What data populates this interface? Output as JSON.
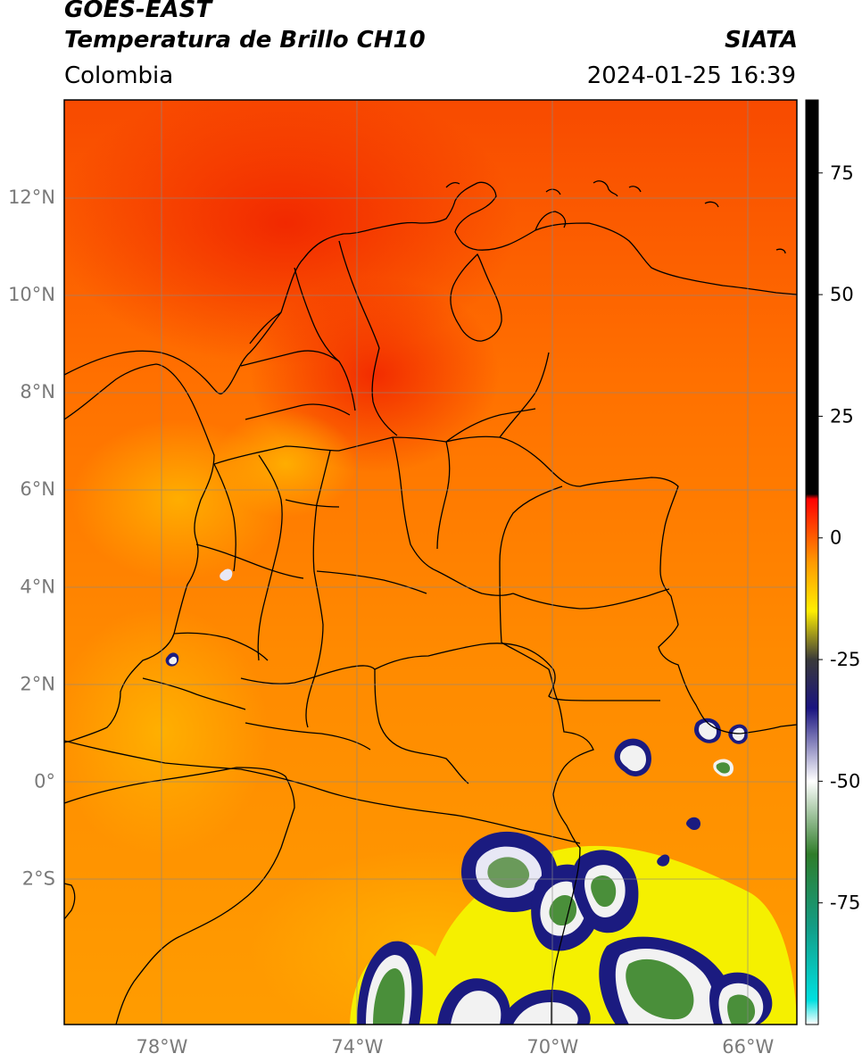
{
  "header": {
    "satellite": "GOES-EAST",
    "product": "Temperatura de Brillo CH10",
    "region": "Colombia",
    "organization": "SIATA",
    "timestamp": "2024-01-25 16:39"
  },
  "map": {
    "lon_range": [
      -80,
      -65
    ],
    "lat_range": [
      -5,
      14
    ],
    "lat_ticks": [
      "12°N",
      "10°N",
      "8°N",
      "6°N",
      "4°N",
      "2°N",
      "0°",
      "2°S"
    ],
    "lon_ticks": [
      "78°W",
      "74°W",
      "70°W",
      "66°W"
    ],
    "background_colors": {
      "warm": "#ff7a00",
      "hot": "#f23a00",
      "mild": "#ff9a00"
    },
    "cloud_colors": {
      "cold_core": "#4a8f3a",
      "white": "#f2f2f2",
      "navy": "#1b1b80",
      "yellow": "#f5f000"
    }
  },
  "colorbar": {
    "range": [
      -100,
      90
    ],
    "tick_labels": [
      "75",
      "50",
      "25",
      "0",
      "-25",
      "-50",
      "-75"
    ],
    "stops": [
      {
        "value": -100,
        "color": "#ffffff"
      },
      {
        "value": -95,
        "color": "#00e0e0"
      },
      {
        "value": -80,
        "color": "#139d86"
      },
      {
        "value": -65,
        "color": "#2f7d2a"
      },
      {
        "value": -50,
        "color": "#ffffff"
      },
      {
        "value": -35,
        "color": "#1a1480"
      },
      {
        "value": -25,
        "color": "#3a3a3a"
      },
      {
        "value": -15,
        "color": "#ffee00"
      },
      {
        "value": -5,
        "color": "#ff9a00"
      },
      {
        "value": 8,
        "color": "#ff0000"
      },
      {
        "value": 9,
        "color": "#000000"
      },
      {
        "value": 90,
        "color": "#000000"
      }
    ]
  }
}
